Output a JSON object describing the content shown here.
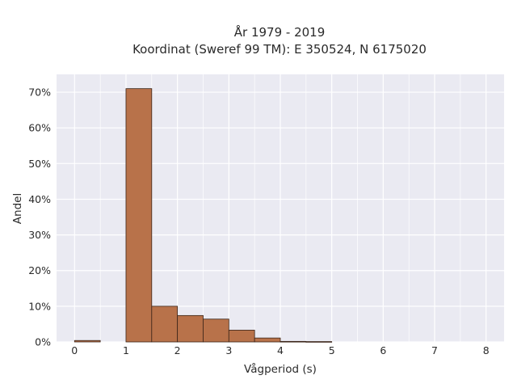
{
  "chart_data": {
    "type": "bar",
    "title_line1": "År 1979 - 2019",
    "title_line2": "Koordinat (Sweref 99 TM): E 350524, N 6175020",
    "xlabel": "Vågperiod (s)",
    "ylabel": "Andel",
    "xlim": [
      -0.35,
      8.35
    ],
    "ylim": [
      0,
      75
    ],
    "x_ticks": [
      0,
      1,
      2,
      3,
      4,
      5,
      6,
      7,
      8
    ],
    "y_ticks": [
      0,
      10,
      20,
      30,
      40,
      50,
      60,
      70
    ],
    "y_tick_labels": [
      "0%",
      "10%",
      "20%",
      "30%",
      "40%",
      "50%",
      "60%",
      "70%"
    ],
    "bin_width": 0.5,
    "bins": [
      {
        "start": 0.0,
        "value": 0.4
      },
      {
        "start": 0.5,
        "value": 0.0
      },
      {
        "start": 1.0,
        "value": 71.0
      },
      {
        "start": 1.5,
        "value": 10.0
      },
      {
        "start": 2.0,
        "value": 7.4
      },
      {
        "start": 2.5,
        "value": 6.4
      },
      {
        "start": 3.0,
        "value": 3.3
      },
      {
        "start": 3.5,
        "value": 1.1
      },
      {
        "start": 4.0,
        "value": 0.15
      },
      {
        "start": 4.5,
        "value": 0.1
      }
    ],
    "grid": true,
    "colors": {
      "bar_fill": "#b8724a",
      "bar_stroke": "#3a2418",
      "plot_bg": "#eaeaf2",
      "grid": "#ffffff"
    }
  }
}
